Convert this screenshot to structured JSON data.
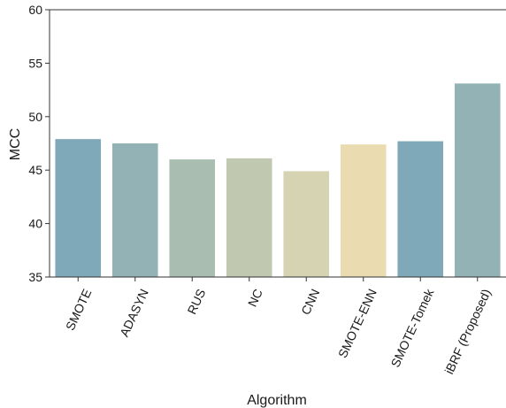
{
  "chart_data": {
    "type": "bar",
    "xlabel": "Algorithm",
    "ylabel": "MCC",
    "ylim": [
      35,
      60
    ],
    "yticks": [
      35,
      40,
      45,
      50,
      55,
      60
    ],
    "categories": [
      "SMOTE",
      "ADASYN",
      "RUS",
      "NC",
      "CNN",
      "SMOTE-ENN",
      "SMOTE-Tomek",
      "iBRF (Proposed)"
    ],
    "values": [
      47.9,
      47.5,
      46.0,
      46.1,
      44.9,
      47.4,
      47.7,
      53.1
    ],
    "colors": [
      "#7fa8b8",
      "#92b2b6",
      "#a9beb0",
      "#c0c9b0",
      "#d6d3b3",
      "#eadbb0",
      "#7fa8b8",
      "#92b2b6"
    ],
    "grid": false,
    "legend": "none"
  }
}
